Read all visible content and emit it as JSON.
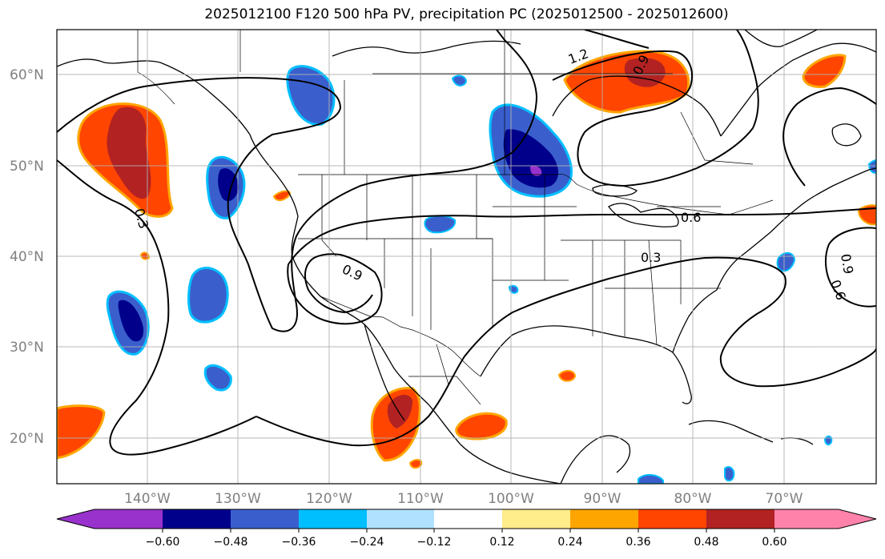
{
  "title": "2025012100 F120 500 hPa PV, precipitation PC (2025012500 - 2025012600)",
  "map": {
    "projection": "PlateCarree",
    "lon_range": [
      -150,
      -60
    ],
    "lat_range": [
      15,
      65
    ],
    "gridlines": true,
    "lat_ticks": [
      "60°N",
      "50°N",
      "40°N",
      "30°N",
      "20°N"
    ],
    "lon_ticks": [
      "140°W",
      "130°W",
      "120°W",
      "110°W",
      "100°W",
      "90°W",
      "80°W",
      "70°W"
    ],
    "contour_labels": [
      "1.2",
      "0.9",
      "0.3",
      "0.9",
      "0.6",
      "0.3",
      "0.9",
      "0.6"
    ]
  },
  "colorbar": {
    "labels": [
      "−0.60",
      "−0.48",
      "−0.36",
      "−0.24",
      "−0.12",
      "0.12",
      "0.24",
      "0.36",
      "0.48",
      "0.60"
    ],
    "colors": [
      "#9932CC",
      "#00008B",
      "#3A5FCD",
      "#00BFFF",
      "#B0E2FF",
      "#FFFFFF",
      "#FFEC8B",
      "#FFA500",
      "#FF4500",
      "#B22222",
      "#FF82AB"
    ]
  }
}
